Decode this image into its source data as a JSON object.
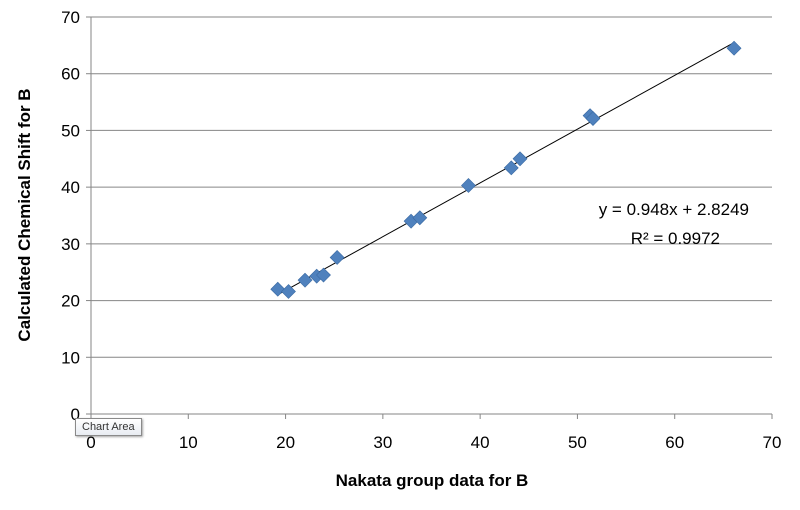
{
  "chart_data": {
    "type": "scatter",
    "xlabel": "Nakata group data for B",
    "ylabel": "Calculated Chemical Shift for B",
    "xlim": [
      0,
      70
    ],
    "ylim": [
      0,
      70
    ],
    "x_ticks": [
      0,
      10,
      20,
      30,
      40,
      50,
      60,
      70
    ],
    "y_ticks": [
      0,
      10,
      20,
      30,
      40,
      50,
      60,
      70
    ],
    "grid": "horizontal",
    "legend": "none",
    "marker": "diamond",
    "marker_color": "#4f81bd",
    "points": [
      {
        "x": 19.2,
        "y": 22.0
      },
      {
        "x": 20.3,
        "y": 21.6
      },
      {
        "x": 22.0,
        "y": 23.6
      },
      {
        "x": 23.2,
        "y": 24.3
      },
      {
        "x": 23.9,
        "y": 24.5
      },
      {
        "x": 25.3,
        "y": 27.6
      },
      {
        "x": 32.9,
        "y": 34.0
      },
      {
        "x": 33.8,
        "y": 34.6
      },
      {
        "x": 38.8,
        "y": 40.3
      },
      {
        "x": 43.2,
        "y": 43.4
      },
      {
        "x": 44.1,
        "y": 45.0
      },
      {
        "x": 51.3,
        "y": 52.6
      },
      {
        "x": 51.6,
        "y": 52.1
      },
      {
        "x": 66.1,
        "y": 64.5
      }
    ],
    "trendline": {
      "slope": 0.948,
      "intercept": 2.8249,
      "x_range": [
        19.2,
        66.1
      ],
      "equation": "y = 0.948x + 2.8249",
      "r_squared": "R² = 0.9972"
    },
    "tooltip": "Chart Area"
  }
}
